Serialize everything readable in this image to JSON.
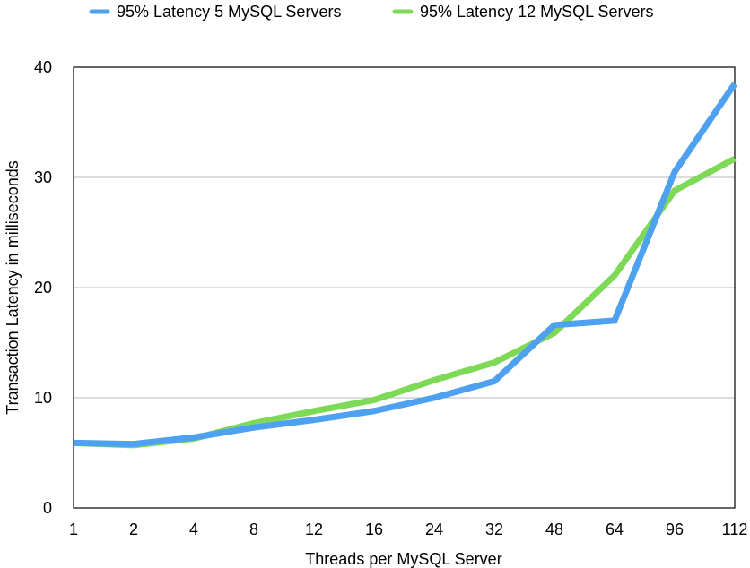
{
  "chart_data": {
    "type": "line",
    "title": "",
    "xlabel": "Threads per MySQL Server",
    "ylabel": "Transaction Latency in milliseconds",
    "categories": [
      "1",
      "2",
      "4",
      "8",
      "12",
      "16",
      "24",
      "32",
      "48",
      "64",
      "96",
      "112"
    ],
    "ylim": [
      0,
      40
    ],
    "yticks": [
      0,
      10,
      20,
      30,
      40
    ],
    "grid": true,
    "legend_position": "top",
    "series": [
      {
        "name": "95% Latency 5 MySQL Servers",
        "color": "#4ea1f0",
        "values": [
          5.9,
          5.8,
          6.4,
          7.3,
          8.0,
          8.8,
          10.0,
          11.5,
          16.6,
          17.0,
          30.5,
          38.5
        ]
      },
      {
        "name": "95% Latency 12 MySQL Servers",
        "color": "#7ed957",
        "values": [
          5.9,
          5.7,
          6.3,
          7.7,
          8.8,
          9.8,
          11.6,
          13.2,
          15.9,
          21.1,
          28.8,
          31.7
        ]
      }
    ]
  }
}
